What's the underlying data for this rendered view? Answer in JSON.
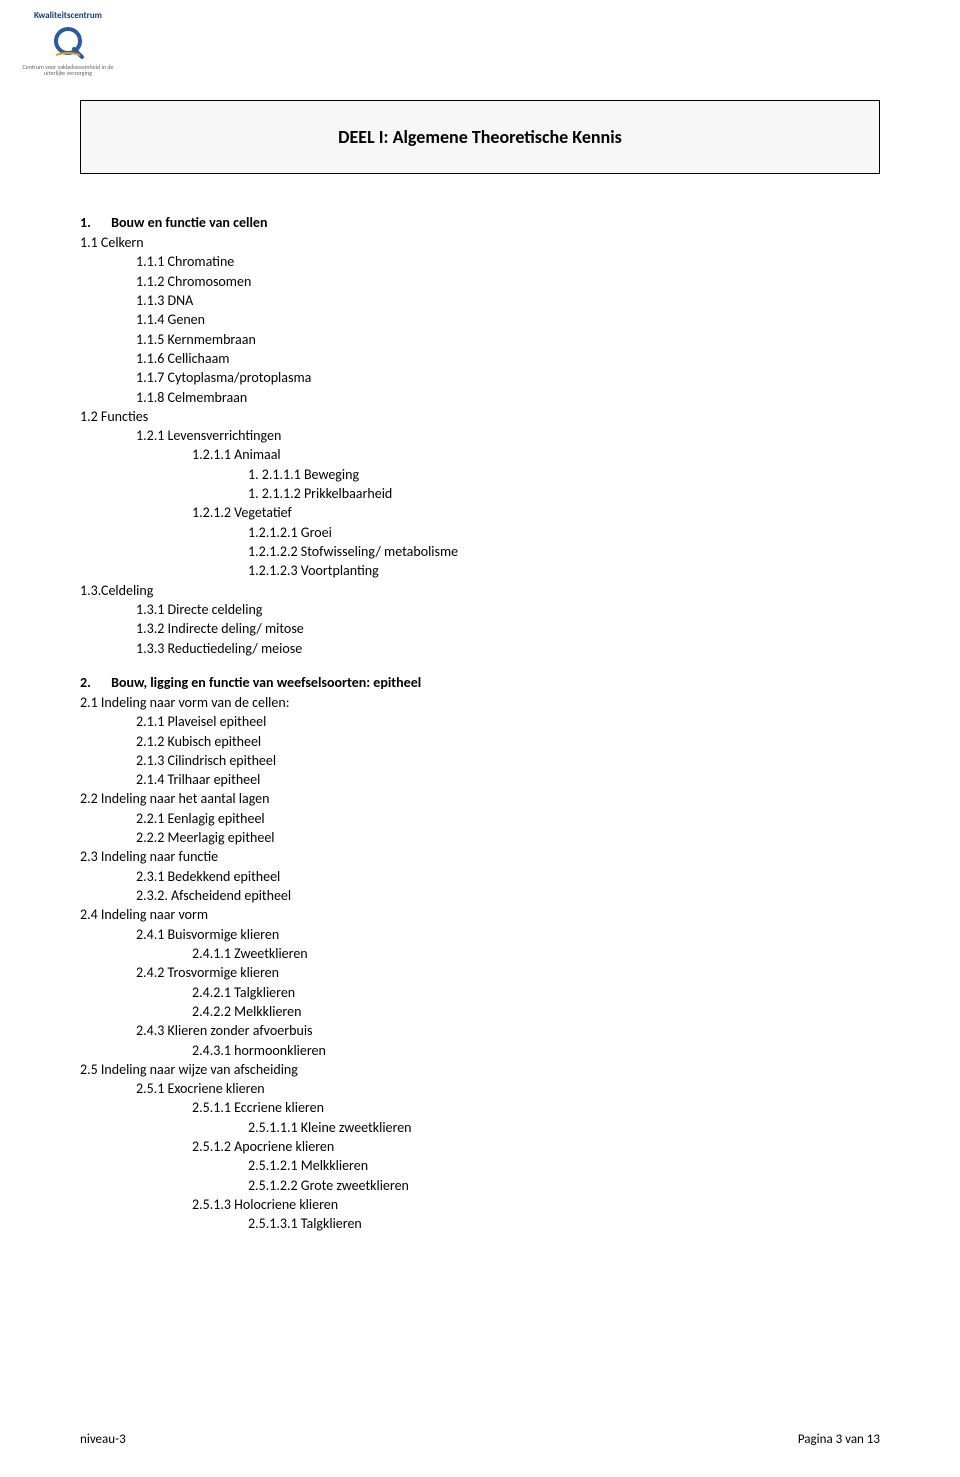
{
  "logo": {
    "title": "Kwaliteitscentrum",
    "subtitle": "Centrum voor vakbekwaamheid in de uiterlijke verzorging"
  },
  "page_title": "DEEL I: Algemene Theoretische Kennis",
  "section1": {
    "num": "1.",
    "title": "Bouw en functie van cellen",
    "lines": [
      [
        "lvl1",
        "1.1 Celkern"
      ],
      [
        "lvl2",
        "1.1.1 Chromatine"
      ],
      [
        "lvl2",
        "1.1.2 Chromosomen"
      ],
      [
        "lvl2",
        "1.1.3 DNA"
      ],
      [
        "lvl2",
        "1.1.4 Genen"
      ],
      [
        "lvl2",
        "1.1.5 Kernmembraan"
      ],
      [
        "lvl2",
        "1.1.6 Cellichaam"
      ],
      [
        "lvl2",
        "1.1.7 Cytoplasma/protoplasma"
      ],
      [
        "lvl2",
        "1.1.8 Celmembraan"
      ],
      [
        "lvl1",
        "1.2  Functies"
      ],
      [
        "lvl2",
        "1.2.1 Levensverrichtingen"
      ],
      [
        "lvl3",
        "1.2.1.1 Animaal"
      ],
      [
        "lvl4",
        "1. 2.1.1.1 Beweging"
      ],
      [
        "lvl4",
        "1. 2.1.1.2 Prikkelbaarheid"
      ],
      [
        "lvl3",
        "1.2.1.2 Vegetatief"
      ],
      [
        "lvl4",
        "1.2.1.2.1 Groei"
      ],
      [
        "lvl4",
        "1.2.1.2.2 Stofwisseling/ metabolisme"
      ],
      [
        "lvl4",
        "1.2.1.2.3 Voortplanting"
      ],
      [
        "lvl1",
        "1.3.Celdeling"
      ],
      [
        "lvl2",
        "1.3.1 Directe celdeling"
      ],
      [
        "lvl2",
        "1.3.2 Indirecte deling/ mitose"
      ],
      [
        "lvl2",
        "1.3.3 Reductiedeling/ meiose"
      ]
    ]
  },
  "section2": {
    "num": "2.",
    "title": "Bouw, ligging en functie van weefselsoorten: epitheel",
    "lines": [
      [
        "lvl1",
        "2.1 Indeling naar vorm van de cellen:"
      ],
      [
        "lvl2",
        "2.1.1 Plaveisel epitheel"
      ],
      [
        "lvl2",
        "2.1.2 Kubisch epitheel"
      ],
      [
        "lvl2",
        "2.1.3 Cilindrisch epitheel"
      ],
      [
        "lvl2",
        "2.1.4 Trilhaar epitheel"
      ],
      [
        "lvl1",
        "2.2 Indeling naar het aantal lagen"
      ],
      [
        "lvl2",
        "2.2.1 Eenlagig epitheel"
      ],
      [
        "lvl2",
        "2.2.2 Meerlagig epitheel"
      ],
      [
        "lvl1",
        "2.3 Indeling naar functie"
      ],
      [
        "lvl2",
        "2.3.1 Bedekkend epitheel"
      ],
      [
        "lvl2",
        "2.3.2. Afscheidend epitheel"
      ],
      [
        "lvl1",
        "2.4 Indeling naar vorm"
      ],
      [
        "lvl2",
        "2.4.1 Buisvormige klieren"
      ],
      [
        "lvl3",
        "2.4.1.1 Zweetklieren"
      ],
      [
        "lvl2",
        "2.4.2 Trosvormige klieren"
      ],
      [
        "lvl3",
        "2.4.2.1 Talgklieren"
      ],
      [
        "lvl3",
        "2.4.2.2 Melkklieren"
      ],
      [
        "lvl2",
        "2.4.3 Klieren zonder afvoerbuis"
      ],
      [
        "lvl3",
        "2.4.3.1 hormoonklieren"
      ],
      [
        "lvl1",
        "2.5 Indeling naar wijze van afscheiding"
      ],
      [
        "lvl2",
        "2.5.1 Exocriene klieren"
      ],
      [
        "lvl3",
        "2.5.1.1 Eccriene klieren"
      ],
      [
        "lvl4",
        "2.5.1.1.1 Kleine zweetklieren"
      ],
      [
        "lvl3",
        "2.5.1.2 Apocriene klieren"
      ],
      [
        "lvl4",
        "2.5.1.2.1 Melkklieren"
      ],
      [
        "lvl4",
        "2.5.1.2.2 Grote zweetklieren"
      ],
      [
        "lvl3",
        "2.5.1.3 Holocriene klieren"
      ],
      [
        "lvl4",
        "2.5.1.3.1 Talgklieren"
      ]
    ]
  },
  "footer": {
    "left": "niveau-3",
    "right": "Pagina 3 van 13"
  }
}
